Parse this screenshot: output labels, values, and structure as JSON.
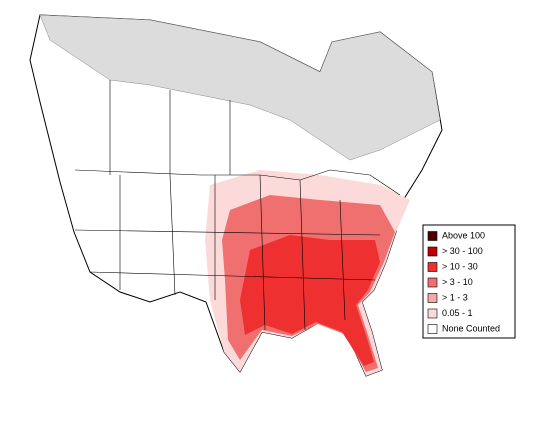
{
  "legend": {
    "items": [
      {
        "label": "Above 100",
        "color": "#4a0000"
      },
      {
        "label": "> 30 - 100",
        "color": "#c00000"
      },
      {
        "label": "> 10 - 30",
        "color": "#ee3030"
      },
      {
        "label": "> 3 - 10",
        "color": "#f07070"
      },
      {
        "label": "> 1 - 3",
        "color": "#f5a8a8"
      },
      {
        "label": "0.05 - 1",
        "color": "#fcdada"
      },
      {
        "label": "None Counted",
        "color": "#ffffff"
      }
    ]
  }
}
